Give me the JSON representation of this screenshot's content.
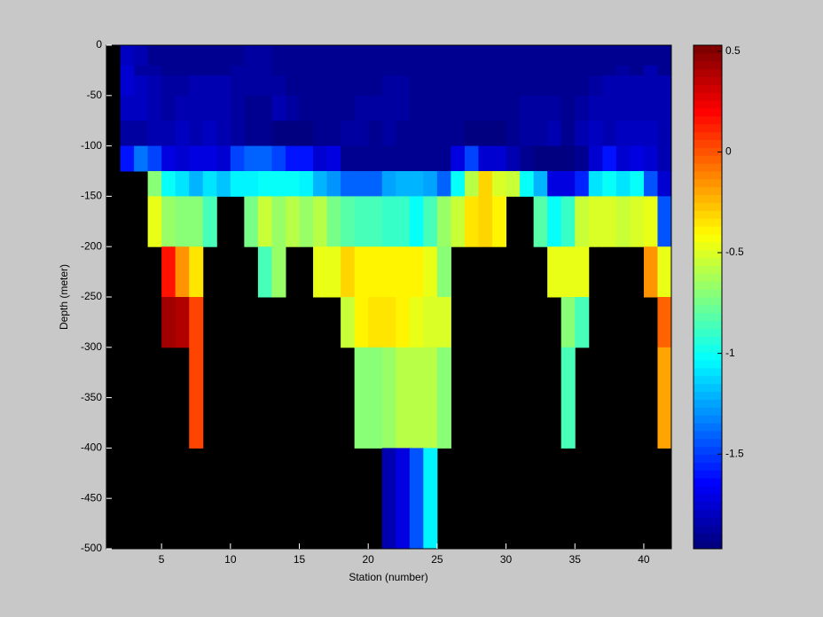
{
  "chart_data": {
    "type": "heatmap",
    "xlabel": "Station (number)",
    "ylabel": "Depth (meter)",
    "xlim": [
      1,
      42
    ],
    "xticks": [
      5,
      10,
      15,
      20,
      25,
      30,
      35,
      40
    ],
    "ylim": [
      -500,
      0
    ],
    "yticks": [
      0,
      -50,
      -100,
      -150,
      -200,
      -250,
      -300,
      -350,
      -400,
      -450,
      -500
    ],
    "clim": [
      -1.97,
      0.53
    ],
    "cticks": [
      0.5,
      0,
      -0.5,
      -1,
      -1.5
    ],
    "colormap": "jet",
    "x_edges": [
      2,
      3,
      4,
      5,
      6,
      7,
      8,
      9,
      10,
      11,
      12,
      13,
      14,
      15,
      16,
      17,
      18,
      19,
      20,
      21,
      22,
      23,
      24,
      25,
      26,
      27,
      28,
      29,
      30,
      31,
      32,
      33,
      34,
      35,
      36,
      37,
      38,
      39,
      40,
      41,
      42
    ],
    "y_edges": [
      0,
      -20,
      -30,
      -50,
      -75,
      -100,
      -125,
      -150,
      -200,
      -250,
      -300,
      -400,
      -500
    ],
    "z": [
      [
        -1.8,
        -1.85,
        -1.92,
        -1.92,
        -1.92,
        -1.92,
        -1.92,
        -1.92,
        -1.92,
        -1.88,
        -1.88,
        -1.92,
        -1.92,
        -1.92,
        -1.92,
        -1.92,
        -1.92,
        -1.92,
        -1.92,
        -1.92,
        -1.92,
        -1.92,
        -1.92,
        -1.92,
        -1.92,
        -1.92,
        -1.92,
        -1.92,
        -1.92,
        -1.92,
        -1.92,
        -1.92,
        -1.92,
        -1.92,
        -1.92,
        -1.92,
        -1.92,
        -1.92,
        -1.92,
        -1.92
      ],
      [
        -1.75,
        -1.88,
        -1.88,
        -1.92,
        -1.92,
        -1.92,
        -1.9,
        -1.9,
        -1.88,
        -1.88,
        -1.88,
        -1.92,
        -1.92,
        -1.92,
        -1.92,
        -1.92,
        -1.92,
        -1.92,
        -1.92,
        -1.92,
        -1.92,
        -1.92,
        -1.92,
        -1.92,
        -1.92,
        -1.92,
        -1.92,
        -1.92,
        -1.92,
        -1.92,
        -1.92,
        -1.92,
        -1.92,
        -1.92,
        -1.92,
        -1.92,
        -1.88,
        -1.92,
        -1.85,
        -1.92
      ],
      [
        -1.75,
        -1.8,
        -1.85,
        -1.88,
        -1.88,
        -1.85,
        -1.85,
        -1.85,
        -1.88,
        -1.88,
        -1.88,
        -1.88,
        -1.92,
        -1.92,
        -1.92,
        -1.92,
        -1.92,
        -1.92,
        -1.92,
        -1.88,
        -1.88,
        -1.9,
        -1.92,
        -1.92,
        -1.92,
        -1.92,
        -1.92,
        -1.92,
        -1.92,
        -1.92,
        -1.92,
        -1.92,
        -1.92,
        -1.92,
        -1.88,
        -1.85,
        -1.82,
        -1.82,
        -1.85,
        -1.85
      ],
      [
        -1.8,
        -1.8,
        -1.85,
        -1.88,
        -1.85,
        -1.85,
        -1.82,
        -1.85,
        -1.88,
        -1.9,
        -1.9,
        -1.85,
        -1.88,
        -1.92,
        -1.92,
        -1.92,
        -1.9,
        -1.88,
        -1.88,
        -1.88,
        -1.88,
        -1.9,
        -1.9,
        -1.92,
        -1.92,
        -1.92,
        -1.9,
        -1.9,
        -1.9,
        -1.88,
        -1.88,
        -1.88,
        -1.9,
        -1.88,
        -1.85,
        -1.82,
        -1.82,
        -1.85,
        -1.85,
        -1.85
      ],
      [
        -1.88,
        -1.88,
        -1.82,
        -1.85,
        -1.8,
        -1.82,
        -1.78,
        -1.85,
        -1.88,
        -1.9,
        -1.9,
        -1.95,
        -1.95,
        -1.95,
        -1.92,
        -1.92,
        -1.88,
        -1.88,
        -1.9,
        -1.88,
        -1.92,
        -1.92,
        -1.92,
        -1.9,
        -1.9,
        -1.95,
        -1.95,
        -1.95,
        -1.92,
        -1.88,
        -1.88,
        -1.85,
        -1.9,
        -1.85,
        -1.8,
        -1.82,
        -1.8,
        -1.8,
        -1.8,
        -1.85
      ],
      [
        -1.6,
        -1.35,
        -1.5,
        -1.7,
        -1.75,
        -1.7,
        -1.7,
        -1.75,
        -1.5,
        -1.4,
        -1.4,
        -1.5,
        -1.6,
        -1.6,
        -1.75,
        -1.7,
        -1.9,
        -1.9,
        -1.9,
        -1.9,
        -1.9,
        -1.9,
        -1.9,
        -1.9,
        -1.7,
        -1.5,
        -1.75,
        -1.75,
        -1.85,
        -1.9,
        -1.95,
        -1.95,
        -1.95,
        -1.9,
        -1.75,
        -1.6,
        -1.75,
        -1.7,
        -1.75,
        -1.85
      ],
      [
        null,
        null,
        -0.7,
        -1.0,
        -1.1,
        -1.2,
        -1.1,
        -1.15,
        -1.05,
        -1.05,
        -1.0,
        -1.0,
        -1.0,
        -1.05,
        -1.2,
        -1.3,
        -1.4,
        -1.4,
        -1.4,
        -1.25,
        -1.2,
        -1.2,
        -1.25,
        -1.4,
        -1.0,
        -0.6,
        -0.3,
        -0.5,
        -0.55,
        -1.0,
        -1.2,
        -1.7,
        -1.7,
        -1.55,
        -1.1,
        -1.0,
        -1.1,
        -1.0,
        -1.45,
        -1.75
      ],
      [
        null,
        null,
        -0.45,
        -0.65,
        -0.7,
        -0.7,
        -0.85,
        null,
        null,
        -0.75,
        -0.55,
        -0.65,
        -0.6,
        -0.65,
        -0.6,
        -0.75,
        -0.8,
        -0.85,
        -0.85,
        -0.9,
        -0.9,
        -1.0,
        -0.85,
        -0.65,
        -0.55,
        -0.35,
        -0.3,
        -0.4,
        null,
        null,
        -0.8,
        -1.0,
        -0.9,
        -0.55,
        -0.5,
        -0.5,
        -0.55,
        -0.5,
        -0.45,
        -1.45
      ],
      [
        null,
        null,
        null,
        0.15,
        -0.15,
        -0.35,
        null,
        null,
        null,
        null,
        -0.85,
        -0.65,
        null,
        null,
        -0.45,
        -0.45,
        -0.3,
        -0.4,
        -0.4,
        -0.4,
        -0.4,
        -0.4,
        -0.45,
        -0.7,
        null,
        null,
        null,
        null,
        null,
        null,
        null,
        -0.45,
        -0.45,
        -0.45,
        null,
        null,
        null,
        null,
        -0.15,
        -0.45
      ],
      [
        null,
        null,
        null,
        0.45,
        0.4,
        0.05,
        null,
        null,
        null,
        null,
        null,
        null,
        null,
        null,
        null,
        null,
        -0.55,
        -0.4,
        -0.35,
        -0.35,
        -0.4,
        -0.45,
        -0.5,
        -0.5,
        null,
        null,
        null,
        null,
        null,
        null,
        null,
        null,
        -0.7,
        -0.85,
        null,
        null,
        null,
        null,
        null,
        -0.05
      ],
      [
        null,
        null,
        null,
        null,
        null,
        0.05,
        null,
        null,
        null,
        null,
        null,
        null,
        null,
        null,
        null,
        null,
        null,
        -0.7,
        -0.7,
        -0.65,
        -0.6,
        -0.6,
        -0.6,
        -0.7,
        null,
        null,
        null,
        null,
        null,
        null,
        null,
        null,
        -0.85,
        null,
        null,
        null,
        null,
        null,
        null,
        -0.2
      ],
      [
        null,
        null,
        null,
        null,
        null,
        null,
        null,
        null,
        null,
        null,
        null,
        null,
        null,
        null,
        null,
        null,
        null,
        null,
        null,
        -1.85,
        -1.7,
        -1.45,
        -1.05,
        null,
        null,
        null,
        null,
        null,
        null,
        null,
        null,
        null,
        null,
        null,
        null,
        null,
        null,
        null,
        null,
        null
      ]
    ]
  }
}
